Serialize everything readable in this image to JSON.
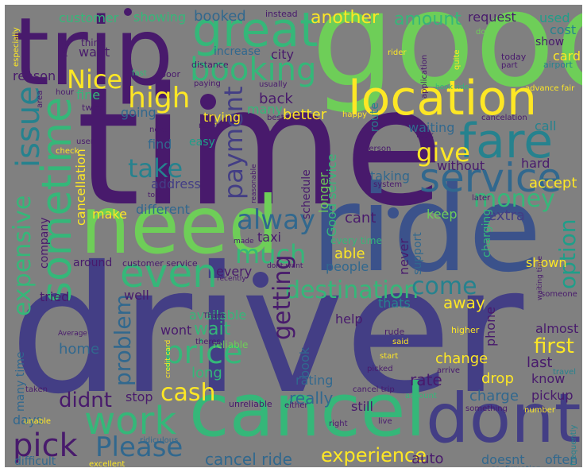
{
  "palette": {
    "background": "#808080",
    "deep_purple": "#481a6c",
    "indigo": "#433e85",
    "blue": "#3b528b",
    "steel": "#31688e",
    "teal": "#26828e",
    "sea": "#1f9e89",
    "green": "#35b779",
    "lime": "#6ece58",
    "yellow": "#fde725"
  },
  "words": [
    {
      "text": "driver",
      "color": "#433e85"
    },
    {
      "text": "time",
      "color": "#481a6c"
    },
    {
      "text": "good",
      "color": "#6ece58"
    },
    {
      "text": "ride",
      "color": "#3b528b"
    },
    {
      "text": "trip",
      "color": "#481a6c"
    },
    {
      "text": "need",
      "color": "#6ece58"
    },
    {
      "text": "cancel",
      "color": "#35b779"
    },
    {
      "text": "dont",
      "color": "#433e85"
    },
    {
      "text": "location",
      "color": "#fde725"
    },
    {
      "text": "great",
      "color": "#35b779"
    },
    {
      "text": "booking",
      "color": "#35b779"
    },
    {
      "text": "fare",
      "color": "#26828e"
    },
    {
      "text": "service",
      "color": "#31688e"
    },
    {
      "text": "sometime",
      "color": "#35b779"
    },
    {
      "text": "issue",
      "color": "#26828e"
    },
    {
      "text": "expensive",
      "color": "#35b779"
    },
    {
      "text": "even",
      "color": "#35b779"
    },
    {
      "text": "work",
      "color": "#35b779"
    },
    {
      "text": "price",
      "color": "#35b779"
    },
    {
      "text": "pick",
      "color": "#481a6c"
    },
    {
      "text": "Please",
      "color": "#31688e"
    },
    {
      "text": "destination",
      "color": "#35b779"
    },
    {
      "text": "much",
      "color": "#35b779"
    },
    {
      "text": "alway",
      "color": "#31688e"
    },
    {
      "text": "high",
      "color": "#fde725"
    },
    {
      "text": "Nice",
      "color": "#fde725"
    },
    {
      "text": "give",
      "color": "#fde725"
    },
    {
      "text": "take",
      "color": "#26828e"
    },
    {
      "text": "payment",
      "color": "#433e85"
    },
    {
      "text": "money",
      "color": "#35b779"
    },
    {
      "text": "cash",
      "color": "#fde725"
    },
    {
      "text": "getting",
      "color": "#481a6c"
    },
    {
      "text": "come",
      "color": "#26828e"
    },
    {
      "text": "option",
      "color": "#1f9e89"
    },
    {
      "text": "problem",
      "color": "#31688e"
    },
    {
      "text": "experience",
      "color": "#fde725"
    },
    {
      "text": "cancel ride",
      "color": "#31688e"
    },
    {
      "text": "didnt",
      "color": "#481a6c"
    },
    {
      "text": "first",
      "color": "#fde725"
    },
    {
      "text": "customer",
      "color": "#35b779"
    },
    {
      "text": "showing",
      "color": "#35b779"
    },
    {
      "text": "booked",
      "color": "#31688e"
    },
    {
      "text": "another",
      "color": "#fde725"
    },
    {
      "text": "amount",
      "color": "#35b779"
    },
    {
      "text": "request",
      "color": "#481a6c"
    },
    {
      "text": "used",
      "color": "#1f9e89"
    },
    {
      "text": "cost",
      "color": "#26828e"
    },
    {
      "text": "show",
      "color": "#481a6c"
    },
    {
      "text": "card",
      "color": "#fde725"
    },
    {
      "text": "city",
      "color": "#481a6c"
    },
    {
      "text": "increase",
      "color": "#31688e"
    },
    {
      "text": "want",
      "color": "#481a6c"
    },
    {
      "text": "reason",
      "color": "#481a6c"
    },
    {
      "text": "fine",
      "color": "#35b779"
    },
    {
      "text": "back",
      "color": "#481a6c"
    },
    {
      "text": "many",
      "color": "#35b779"
    },
    {
      "text": "better",
      "color": "#fde725"
    },
    {
      "text": "trying",
      "color": "#fde725"
    },
    {
      "text": "going",
      "color": "#31688e"
    },
    {
      "text": "waiting",
      "color": "#31688e"
    },
    {
      "text": "call",
      "color": "#26828e"
    },
    {
      "text": "find",
      "color": "#31688e"
    },
    {
      "text": "easy",
      "color": "#1f9e89"
    },
    {
      "text": "without",
      "color": "#481a6c"
    },
    {
      "text": "accept",
      "color": "#fde725"
    },
    {
      "text": "hard",
      "color": "#481a6c"
    },
    {
      "text": "address",
      "color": "#433e85"
    },
    {
      "text": "cancellation",
      "color": "#fde725"
    },
    {
      "text": "different",
      "color": "#31688e"
    },
    {
      "text": "make",
      "color": "#fde725"
    },
    {
      "text": "cant",
      "color": "#481a6c"
    },
    {
      "text": "keep",
      "color": "#6ece58"
    },
    {
      "text": "extra",
      "color": "#433e85"
    },
    {
      "text": "taxi",
      "color": "#481a6c"
    },
    {
      "text": "able",
      "color": "#fde725"
    },
    {
      "text": "around",
      "color": "#481a6c"
    },
    {
      "text": "people",
      "color": "#31688e"
    },
    {
      "text": "away",
      "color": "#fde725"
    },
    {
      "text": "shown",
      "color": "#fde725"
    },
    {
      "text": "well",
      "color": "#481a6c"
    },
    {
      "text": "thats",
      "color": "#26828e"
    },
    {
      "text": "tried",
      "color": "#481a6c"
    },
    {
      "text": "help",
      "color": "#481a6c"
    },
    {
      "text": "wait",
      "color": "#35b779"
    },
    {
      "text": "wont",
      "color": "#481a6c"
    },
    {
      "text": "almost",
      "color": "#481a6c"
    },
    {
      "text": "home",
      "color": "#31688e"
    },
    {
      "text": "long",
      "color": "#35b779"
    },
    {
      "text": "change",
      "color": "#fde725"
    },
    {
      "text": "last",
      "color": "#481a6c"
    },
    {
      "text": "know",
      "color": "#481a6c"
    },
    {
      "text": "stop",
      "color": "#481a6c"
    },
    {
      "text": "rate",
      "color": "#481a6c"
    },
    {
      "text": "drop",
      "color": "#fde725"
    },
    {
      "text": "charge",
      "color": "#31688e"
    },
    {
      "text": "pickup",
      "color": "#481a6c"
    },
    {
      "text": "really",
      "color": "#31688e"
    },
    {
      "text": "still",
      "color": "#481a6c"
    },
    {
      "text": "days",
      "color": "#31688e"
    },
    {
      "text": "rating",
      "color": "#31688e"
    },
    {
      "text": "auto",
      "color": "#481a6c"
    },
    {
      "text": "often",
      "color": "#31688e"
    },
    {
      "text": "doesnt",
      "color": "#31688e"
    },
    {
      "text": "difficult",
      "color": "#31688e"
    },
    {
      "text": "Good service",
      "color": "#35b779"
    },
    {
      "text": "never",
      "color": "#481a6c"
    },
    {
      "text": "support",
      "color": "#31688e"
    },
    {
      "text": "longer",
      "color": "#6ece58"
    },
    {
      "text": "schedule",
      "color": "#481a6c"
    },
    {
      "text": "taking",
      "color": "#31688e"
    },
    {
      "text": "phone",
      "color": "#481a6c"
    },
    {
      "text": "book",
      "color": "#31688e"
    },
    {
      "text": "available",
      "color": "#35b779"
    },
    {
      "text": "every",
      "color": "#481a6c"
    },
    {
      "text": "company",
      "color": "#481a6c"
    },
    {
      "text": "many time",
      "color": "#31688e"
    },
    {
      "text": "route",
      "color": "#26828e"
    },
    {
      "text": "charging",
      "color": "#35b779"
    },
    {
      "text": "every time",
      "color": "#35b779"
    },
    {
      "text": "customer service",
      "color": "#481a6c"
    },
    {
      "text": "unreliable",
      "color": "#481a6c"
    },
    {
      "text": "reliable",
      "color": "#6ece58"
    },
    {
      "text": "experience",
      "color": "#fde725"
    },
    {
      "text": "instead",
      "color": "#481a6c"
    },
    {
      "text": "think",
      "color": "#481a6c"
    },
    {
      "text": "update",
      "color": "#481a6c"
    },
    {
      "text": "rider",
      "color": "#fde725"
    },
    {
      "text": "done",
      "color": "#6ece58"
    },
    {
      "text": "today",
      "color": "#481a6c"
    },
    {
      "text": "part",
      "color": "#481a6c"
    },
    {
      "text": "airport",
      "color": "#26828e"
    },
    {
      "text": "quite",
      "color": "#fde725"
    },
    {
      "text": "application",
      "color": "#481a6c"
    },
    {
      "text": "book ride",
      "color": "#35b779"
    },
    {
      "text": "advance fair",
      "color": "#fde725"
    },
    {
      "text": "distance",
      "color": "#481a6c"
    },
    {
      "text": "poor",
      "color": "#481a6c"
    },
    {
      "text": "fast",
      "color": "#35b779"
    },
    {
      "text": "paying",
      "color": "#481a6c"
    },
    {
      "text": "usually",
      "color": "#481a6c"
    },
    {
      "text": "hour",
      "color": "#481a6c"
    },
    {
      "text": "twice",
      "color": "#481a6c"
    },
    {
      "text": "best",
      "color": "#481a6c"
    },
    {
      "text": "happy",
      "color": "#fde725"
    },
    {
      "text": "cancelation",
      "color": "#481a6c"
    },
    {
      "text": "next",
      "color": "#481a6c"
    },
    {
      "text": "person",
      "color": "#481a6c"
    },
    {
      "text": "took",
      "color": "#481a6c"
    },
    {
      "text": "check",
      "color": "#fde725"
    },
    {
      "text": "system",
      "color": "#481a6c"
    },
    {
      "text": "reasonable",
      "color": "#481a6c"
    },
    {
      "text": "told",
      "color": "#481a6c"
    },
    {
      "text": "later",
      "color": "#481a6c"
    },
    {
      "text": "waiting time",
      "color": "#481a6c"
    },
    {
      "text": "made",
      "color": "#481a6c"
    },
    {
      "text": "dont want",
      "color": "#481a6c"
    },
    {
      "text": "recently",
      "color": "#481a6c"
    },
    {
      "text": "Thank",
      "color": "#481a6c"
    },
    {
      "text": "Average",
      "color": "#481a6c"
    },
    {
      "text": "theres",
      "color": "#481a6c"
    },
    {
      "text": "credit card",
      "color": "#fde725"
    },
    {
      "text": "higher",
      "color": "#fde725"
    },
    {
      "text": "rude",
      "color": "#481a6c"
    },
    {
      "text": "said",
      "color": "#fde725"
    },
    {
      "text": "picked",
      "color": "#481a6c"
    },
    {
      "text": "start",
      "color": "#fde725"
    },
    {
      "text": "arrive",
      "color": "#481a6c"
    },
    {
      "text": "travel",
      "color": "#26828e"
    },
    {
      "text": "taken",
      "color": "#481a6c"
    },
    {
      "text": "cancel trip",
      "color": "#481a6c"
    },
    {
      "text": "account",
      "color": "#35b779"
    },
    {
      "text": "number",
      "color": "#fde725"
    },
    {
      "text": "something",
      "color": "#481a6c"
    },
    {
      "text": "right",
      "color": "#481a6c"
    },
    {
      "text": "unable",
      "color": "#fde725"
    },
    {
      "text": "ridiculous",
      "color": "#31688e"
    },
    {
      "text": "excellent",
      "color": "#fde725"
    },
    {
      "text": "confirmation",
      "color": "#31688e"
    },
    {
      "text": "frequently",
      "color": "#26828e"
    },
    {
      "text": "especially",
      "color": "#fde725"
    },
    {
      "text": "someone",
      "color": "#481a6c"
    },
    {
      "text": "either",
      "color": "#481a6c"
    },
    {
      "text": "reach",
      "color": "#481a6c"
    },
    {
      "text": "user",
      "color": "#481a6c"
    },
    {
      "text": "area",
      "color": "#481a6c"
    },
    {
      "text": "live",
      "color": "#481a6c"
    }
  ]
}
